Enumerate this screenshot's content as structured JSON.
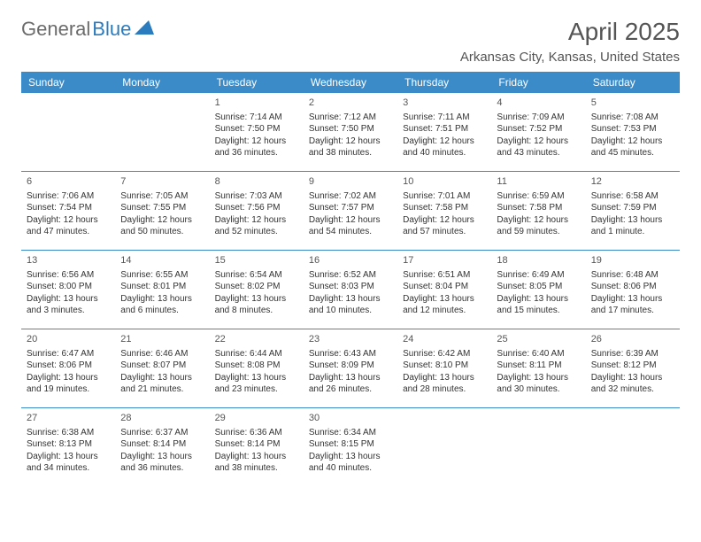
{
  "brand": {
    "name1": "General",
    "name2": "Blue"
  },
  "title": "April 2025",
  "location": "Arkansas City, Kansas, United States",
  "colors": {
    "header_bg": "#3b8bc9",
    "header_text": "#ffffff",
    "rule": "#3b8bc9",
    "text": "#333333",
    "muted": "#555555",
    "brand_gray": "#6b6b6b",
    "brand_blue": "#2b7bbf"
  },
  "dayHeaders": [
    "Sunday",
    "Monday",
    "Tuesday",
    "Wednesday",
    "Thursday",
    "Friday",
    "Saturday"
  ],
  "weeks": [
    [
      null,
      null,
      {
        "n": "1",
        "sr": "7:14 AM",
        "ss": "7:50 PM",
        "dl": "12 hours and 36 minutes."
      },
      {
        "n": "2",
        "sr": "7:12 AM",
        "ss": "7:50 PM",
        "dl": "12 hours and 38 minutes."
      },
      {
        "n": "3",
        "sr": "7:11 AM",
        "ss": "7:51 PM",
        "dl": "12 hours and 40 minutes."
      },
      {
        "n": "4",
        "sr": "7:09 AM",
        "ss": "7:52 PM",
        "dl": "12 hours and 43 minutes."
      },
      {
        "n": "5",
        "sr": "7:08 AM",
        "ss": "7:53 PM",
        "dl": "12 hours and 45 minutes."
      }
    ],
    [
      {
        "n": "6",
        "sr": "7:06 AM",
        "ss": "7:54 PM",
        "dl": "12 hours and 47 minutes."
      },
      {
        "n": "7",
        "sr": "7:05 AM",
        "ss": "7:55 PM",
        "dl": "12 hours and 50 minutes."
      },
      {
        "n": "8",
        "sr": "7:03 AM",
        "ss": "7:56 PM",
        "dl": "12 hours and 52 minutes."
      },
      {
        "n": "9",
        "sr": "7:02 AM",
        "ss": "7:57 PM",
        "dl": "12 hours and 54 minutes."
      },
      {
        "n": "10",
        "sr": "7:01 AM",
        "ss": "7:58 PM",
        "dl": "12 hours and 57 minutes."
      },
      {
        "n": "11",
        "sr": "6:59 AM",
        "ss": "7:58 PM",
        "dl": "12 hours and 59 minutes."
      },
      {
        "n": "12",
        "sr": "6:58 AM",
        "ss": "7:59 PM",
        "dl": "13 hours and 1 minute."
      }
    ],
    [
      {
        "n": "13",
        "sr": "6:56 AM",
        "ss": "8:00 PM",
        "dl": "13 hours and 3 minutes."
      },
      {
        "n": "14",
        "sr": "6:55 AM",
        "ss": "8:01 PM",
        "dl": "13 hours and 6 minutes."
      },
      {
        "n": "15",
        "sr": "6:54 AM",
        "ss": "8:02 PM",
        "dl": "13 hours and 8 minutes."
      },
      {
        "n": "16",
        "sr": "6:52 AM",
        "ss": "8:03 PM",
        "dl": "13 hours and 10 minutes."
      },
      {
        "n": "17",
        "sr": "6:51 AM",
        "ss": "8:04 PM",
        "dl": "13 hours and 12 minutes."
      },
      {
        "n": "18",
        "sr": "6:49 AM",
        "ss": "8:05 PM",
        "dl": "13 hours and 15 minutes."
      },
      {
        "n": "19",
        "sr": "6:48 AM",
        "ss": "8:06 PM",
        "dl": "13 hours and 17 minutes."
      }
    ],
    [
      {
        "n": "20",
        "sr": "6:47 AM",
        "ss": "8:06 PM",
        "dl": "13 hours and 19 minutes."
      },
      {
        "n": "21",
        "sr": "6:46 AM",
        "ss": "8:07 PM",
        "dl": "13 hours and 21 minutes."
      },
      {
        "n": "22",
        "sr": "6:44 AM",
        "ss": "8:08 PM",
        "dl": "13 hours and 23 minutes."
      },
      {
        "n": "23",
        "sr": "6:43 AM",
        "ss": "8:09 PM",
        "dl": "13 hours and 26 minutes."
      },
      {
        "n": "24",
        "sr": "6:42 AM",
        "ss": "8:10 PM",
        "dl": "13 hours and 28 minutes."
      },
      {
        "n": "25",
        "sr": "6:40 AM",
        "ss": "8:11 PM",
        "dl": "13 hours and 30 minutes."
      },
      {
        "n": "26",
        "sr": "6:39 AM",
        "ss": "8:12 PM",
        "dl": "13 hours and 32 minutes."
      }
    ],
    [
      {
        "n": "27",
        "sr": "6:38 AM",
        "ss": "8:13 PM",
        "dl": "13 hours and 34 minutes."
      },
      {
        "n": "28",
        "sr": "6:37 AM",
        "ss": "8:14 PM",
        "dl": "13 hours and 36 minutes."
      },
      {
        "n": "29",
        "sr": "6:36 AM",
        "ss": "8:14 PM",
        "dl": "13 hours and 38 minutes."
      },
      {
        "n": "30",
        "sr": "6:34 AM",
        "ss": "8:15 PM",
        "dl": "13 hours and 40 minutes."
      },
      null,
      null,
      null
    ]
  ],
  "labels": {
    "sunrise": "Sunrise:",
    "sunset": "Sunset:",
    "daylight": "Daylight:"
  }
}
